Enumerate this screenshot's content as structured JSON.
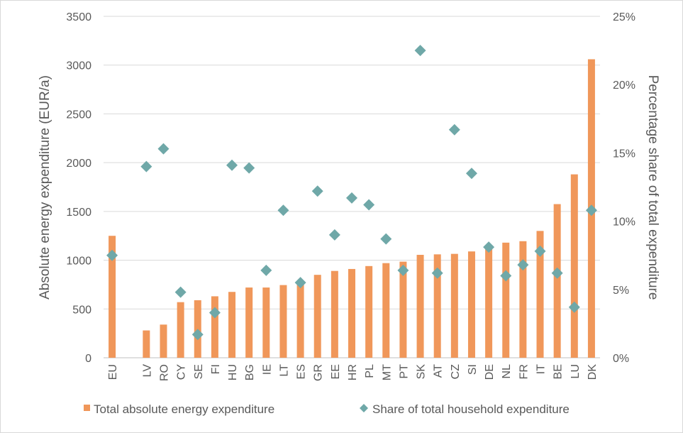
{
  "chart_data": {
    "type": "bar",
    "title": "",
    "categories": [
      "EU",
      "",
      "LV",
      "RO",
      "CY",
      "SE",
      "FI",
      "HU",
      "BG",
      "IE",
      "LT",
      "ES",
      "GR",
      "EE",
      "HR",
      "PL",
      "MT",
      "PT",
      "SK",
      "AT",
      "CZ",
      "SI",
      "DE",
      "NL",
      "FR",
      "IT",
      "BE",
      "LU",
      "DK"
    ],
    "series": [
      {
        "name": "Total absolute energy expenditure",
        "type": "bar",
        "axis": "left",
        "color": "#f0975a",
        "values": [
          1250,
          null,
          280,
          340,
          570,
          590,
          630,
          675,
          720,
          720,
          745,
          770,
          850,
          890,
          910,
          940,
          970,
          985,
          1055,
          1060,
          1065,
          1090,
          1130,
          1180,
          1195,
          1300,
          1575,
          1880,
          3060
        ]
      },
      {
        "name": "Share of total household expenditure",
        "type": "scatter",
        "axis": "right",
        "marker": "diamond",
        "color": "#6fa8a8",
        "values": [
          7.5,
          null,
          14.0,
          15.3,
          4.8,
          1.7,
          3.3,
          14.1,
          13.9,
          6.4,
          10.8,
          5.5,
          12.2,
          9.0,
          11.7,
          11.2,
          8.7,
          6.4,
          22.5,
          6.2,
          16.7,
          13.5,
          8.1,
          6.0,
          6.8,
          7.8,
          6.2,
          3.7,
          10.8
        ]
      }
    ],
    "y_left": {
      "label": "Absolute energy expenditure (EUR/a)",
      "min": 0,
      "max": 3500,
      "ticks": [
        "0",
        "500",
        "1000",
        "1500",
        "2000",
        "2500",
        "3000",
        "3500"
      ]
    },
    "y_right": {
      "label": "Percentage share of total expenditure",
      "min": 0,
      "max": 25,
      "ticks": [
        "0%",
        "5%",
        "10%",
        "15%",
        "20%",
        "25%"
      ]
    },
    "grid": true,
    "legend_position": "bottom"
  }
}
